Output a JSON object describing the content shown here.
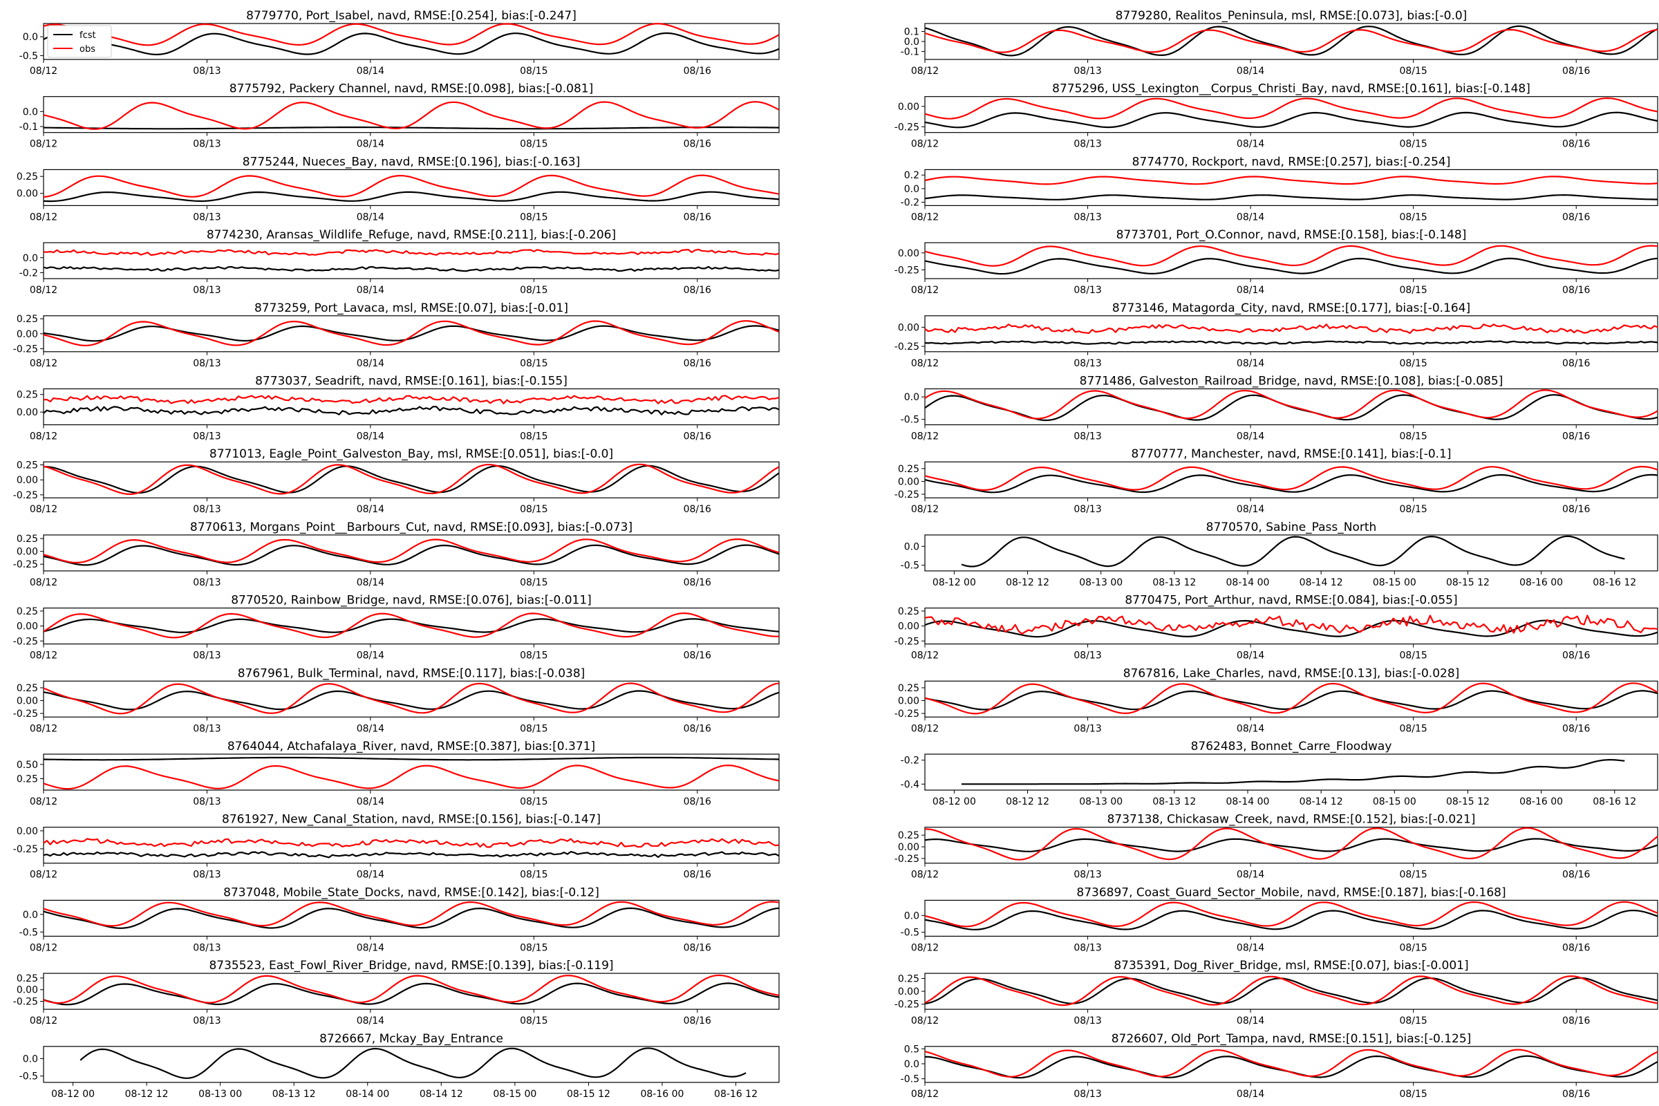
{
  "legend": {
    "items": [
      {
        "label": "fcst",
        "color": "#000000"
      },
      {
        "label": "obs",
        "color": "#ff0000"
      }
    ]
  },
  "colors": {
    "fcst": "#000000",
    "obs": "#ff0000"
  },
  "chart_data": [
    {
      "type": "line",
      "title": "8779770, Port_Isabel, navd, RMSE:[0.254], bias:[-0.247]",
      "xlabel": "",
      "ylabel": "",
      "x_ticks": [
        "08/12",
        "08/13",
        "08/14",
        "08/15",
        "08/16"
      ],
      "y_ticks": [
        "-0.5",
        "0.0"
      ],
      "ylim": [
        -0.6,
        0.35
      ],
      "series": [
        {
          "name": "fcst",
          "shape": "tide",
          "y0": -0.2,
          "amp": 0.25
        },
        {
          "name": "obs",
          "shape": "tide",
          "y0": 0.05,
          "amp": 0.25
        }
      ]
    },
    {
      "type": "line",
      "title": "8779280, Realitos_Peninsula, msl, RMSE:[0.073], bias:[-0.0]",
      "xlabel": "",
      "ylabel": "",
      "x_ticks": [
        "08/12",
        "08/13",
        "08/14",
        "08/15",
        "08/16"
      ],
      "y_ticks": [
        "-0.1",
        "0.0",
        "0.1"
      ],
      "ylim": [
        -0.18,
        0.18
      ],
      "series": [
        {
          "name": "fcst",
          "shape": "tide",
          "y0": 0.0,
          "amp": 0.13
        },
        {
          "name": "obs",
          "shape": "tide",
          "y0": 0.0,
          "amp": 0.1
        }
      ]
    },
    {
      "type": "line",
      "title": "8775792, Packery Channel, navd, RMSE:[0.098], bias:[-0.081]",
      "xlabel": "",
      "ylabel": "",
      "x_ticks": [
        "08/12",
        "08/13",
        "08/14",
        "08/15",
        "08/16"
      ],
      "y_ticks": [
        "-0.1",
        "0.0"
      ],
      "ylim": [
        -0.14,
        0.1
      ],
      "series": [
        {
          "name": "fcst",
          "shape": "flat",
          "y0": -0.11,
          "amp": 0.005
        },
        {
          "name": "obs",
          "shape": "tide",
          "y0": -0.03,
          "amp": 0.08
        }
      ]
    },
    {
      "type": "line",
      "title": "8775296, USS_Lexington__Corpus_Christi_Bay, navd, RMSE:[0.161], bias:[-0.148]",
      "xlabel": "",
      "ylabel": "",
      "x_ticks": [
        "08/12",
        "08/13",
        "08/14",
        "08/15",
        "08/16"
      ],
      "y_ticks": [
        "-0.25",
        "0.00"
      ],
      "ylim": [
        -0.32,
        0.12
      ],
      "series": [
        {
          "name": "fcst",
          "shape": "tide",
          "y0": -0.17,
          "amp": 0.08
        },
        {
          "name": "obs",
          "shape": "tide",
          "y0": -0.03,
          "amp": 0.11
        }
      ]
    },
    {
      "type": "line",
      "title": "8775244, Nueces_Bay, navd, RMSE:[0.196], bias:[-0.163]",
      "xlabel": "",
      "ylabel": "",
      "x_ticks": [
        "08/12",
        "08/13",
        "08/14",
        "08/15",
        "08/16"
      ],
      "y_ticks": [
        "0.00",
        "0.25"
      ],
      "ylim": [
        -0.18,
        0.35
      ],
      "series": [
        {
          "name": "fcst",
          "shape": "tide",
          "y0": -0.05,
          "amp": 0.06
        },
        {
          "name": "obs",
          "shape": "tide",
          "y0": 0.1,
          "amp": 0.14
        }
      ]
    },
    {
      "type": "line",
      "title": "8774770, Rockport, navd, RMSE:[0.257], bias:[-0.254]",
      "xlabel": "",
      "ylabel": "",
      "x_ticks": [
        "08/12",
        "08/13",
        "08/14",
        "08/15",
        "08/16"
      ],
      "y_ticks": [
        "-0.2",
        "0.0",
        "0.2"
      ],
      "ylim": [
        -0.25,
        0.28
      ],
      "series": [
        {
          "name": "fcst",
          "shape": "tide",
          "y0": -0.13,
          "amp": 0.03
        },
        {
          "name": "obs",
          "shape": "tide",
          "y0": 0.12,
          "amp": 0.05
        }
      ]
    },
    {
      "type": "line",
      "title": "8774230, Aransas_Wildlife_Refuge, navd, RMSE:[0.211], bias:[-0.206]",
      "xlabel": "",
      "ylabel": "",
      "x_ticks": [
        "08/12",
        "08/13",
        "08/14",
        "08/15",
        "08/16"
      ],
      "y_ticks": [
        "-0.2",
        "0.0"
      ],
      "ylim": [
        -0.28,
        0.2
      ],
      "series": [
        {
          "name": "fcst",
          "shape": "noisy",
          "y0": -0.15,
          "amp": 0.03
        },
        {
          "name": "obs",
          "shape": "noisy",
          "y0": 0.07,
          "amp": 0.04
        }
      ]
    },
    {
      "type": "line",
      "title": "8773701, Port_O.Connor, navd, RMSE:[0.158], bias:[-0.148]",
      "xlabel": "",
      "ylabel": "",
      "x_ticks": [
        "08/12",
        "08/13",
        "08/14",
        "08/15",
        "08/16"
      ],
      "y_ticks": [
        "-0.25",
        "0.00"
      ],
      "ylim": [
        -0.38,
        0.15
      ],
      "series": [
        {
          "name": "fcst",
          "shape": "tide",
          "y0": -0.2,
          "amp": 0.1
        },
        {
          "name": "obs",
          "shape": "tide",
          "y0": -0.05,
          "amp": 0.13
        }
      ]
    },
    {
      "type": "line",
      "title": "8773259, Port_Lavaca, msl, RMSE:[0.07], bias:[-0.01]",
      "xlabel": "",
      "ylabel": "",
      "x_ticks": [
        "08/12",
        "08/13",
        "08/14",
        "08/15",
        "08/16"
      ],
      "y_ticks": [
        "-0.25",
        "0.00",
        "0.25"
      ],
      "ylim": [
        -0.3,
        0.3
      ],
      "series": [
        {
          "name": "fcst",
          "shape": "tide",
          "y0": 0.0,
          "amp": 0.11
        },
        {
          "name": "obs",
          "shape": "tide",
          "y0": 0.0,
          "amp": 0.18
        }
      ]
    },
    {
      "type": "line",
      "title": "8773146, Matagorda_City, navd, RMSE:[0.177], bias:[-0.164]",
      "xlabel": "",
      "ylabel": "",
      "x_ticks": [
        "08/12",
        "08/13",
        "08/14",
        "08/15",
        "08/16"
      ],
      "y_ticks": [
        "-0.25",
        "0.00"
      ],
      "ylim": [
        -0.32,
        0.15
      ],
      "series": [
        {
          "name": "fcst",
          "shape": "noisy",
          "y0": -0.2,
          "amp": 0.02
        },
        {
          "name": "obs",
          "shape": "noisy",
          "y0": -0.02,
          "amp": 0.06
        }
      ]
    },
    {
      "type": "line",
      "title": "8773037, Seadrift, navd, RMSE:[0.161], bias:[-0.155]",
      "xlabel": "",
      "ylabel": "",
      "x_ticks": [
        "08/12",
        "08/13",
        "08/14",
        "08/15",
        "08/16"
      ],
      "y_ticks": [
        "0.00",
        "0.25"
      ],
      "ylim": [
        -0.18,
        0.33
      ],
      "series": [
        {
          "name": "fcst",
          "shape": "noisy",
          "y0": 0.02,
          "amp": 0.06
        },
        {
          "name": "obs",
          "shape": "noisy",
          "y0": 0.18,
          "amp": 0.06
        }
      ]
    },
    {
      "type": "line",
      "title": "8771486, Galveston_Railroad_Bridge, navd, RMSE:[0.108], bias:[-0.085]",
      "xlabel": "",
      "ylabel": "",
      "x_ticks": [
        "08/12",
        "08/13",
        "08/14",
        "08/15",
        "08/16"
      ],
      "y_ticks": [
        "-0.5",
        "0.0"
      ],
      "ylim": [
        -0.62,
        0.18
      ],
      "series": [
        {
          "name": "fcst",
          "shape": "tide",
          "y0": -0.25,
          "amp": 0.25
        },
        {
          "name": "obs",
          "shape": "tide",
          "y0": -0.18,
          "amp": 0.28
        }
      ]
    },
    {
      "type": "line",
      "title": "8771013, Eagle_Point_Galveston_Bay, msl, RMSE:[0.051], bias:[-0.0]",
      "xlabel": "",
      "ylabel": "",
      "x_ticks": [
        "08/12",
        "08/13",
        "08/14",
        "08/15",
        "08/16"
      ],
      "y_ticks": [
        "-0.25",
        "0.00",
        "0.25"
      ],
      "ylim": [
        -0.3,
        0.3
      ],
      "series": [
        {
          "name": "fcst",
          "shape": "tide",
          "y0": 0.0,
          "amp": 0.2
        },
        {
          "name": "obs",
          "shape": "tide",
          "y0": 0.0,
          "amp": 0.22
        }
      ]
    },
    {
      "type": "line",
      "title": "8770777, Manchester, navd, RMSE:[0.141], bias:[-0.1]",
      "xlabel": "",
      "ylabel": "",
      "x_ticks": [
        "08/12",
        "08/13",
        "08/14",
        "08/15",
        "08/16"
      ],
      "y_ticks": [
        "-0.25",
        "0.00",
        "0.25"
      ],
      "ylim": [
        -0.32,
        0.38
      ],
      "series": [
        {
          "name": "fcst",
          "shape": "tide",
          "y0": -0.05,
          "amp": 0.15
        },
        {
          "name": "obs",
          "shape": "tide",
          "y0": 0.05,
          "amp": 0.2
        }
      ]
    },
    {
      "type": "line",
      "title": "8770613, Morgans_Point__Barbours_Cut, navd, RMSE:[0.093], bias:[-0.073]",
      "xlabel": "",
      "ylabel": "",
      "x_ticks": [
        "08/12",
        "08/13",
        "08/14",
        "08/15",
        "08/16"
      ],
      "y_ticks": [
        "-0.25",
        "0.00",
        "0.25"
      ],
      "ylim": [
        -0.38,
        0.32
      ],
      "series": [
        {
          "name": "fcst",
          "shape": "tide",
          "y0": -0.08,
          "amp": 0.17
        },
        {
          "name": "obs",
          "shape": "tide",
          "y0": 0.0,
          "amp": 0.2
        }
      ]
    },
    {
      "type": "line",
      "title": "8770570, Sabine_Pass_North",
      "xlabel": "",
      "ylabel": "",
      "x_ticks": [
        "08-12 00",
        "08-12 12",
        "08-13 00",
        "08-13 12",
        "08-14 00",
        "08-14 12",
        "08-15 00",
        "08-15 12",
        "08-16 00",
        "08-16 12"
      ],
      "y_ticks": [
        "-0.5",
        "0.0"
      ],
      "ylim": [
        -0.65,
        0.3
      ],
      "series": [
        {
          "name": "fcst",
          "shape": "tide",
          "y0": -0.15,
          "amp": 0.35
        }
      ]
    },
    {
      "type": "line",
      "title": "8770520, Rainbow_Bridge, navd, RMSE:[0.076], bias:[-0.011]",
      "xlabel": "",
      "ylabel": "",
      "x_ticks": [
        "08/12",
        "08/13",
        "08/14",
        "08/15",
        "08/16"
      ],
      "y_ticks": [
        "-0.25",
        "0.00",
        "0.25"
      ],
      "ylim": [
        -0.3,
        0.3
      ],
      "series": [
        {
          "name": "fcst",
          "shape": "tide",
          "y0": 0.0,
          "amp": 0.1
        },
        {
          "name": "obs",
          "shape": "tide",
          "y0": 0.0,
          "amp": 0.18
        }
      ]
    },
    {
      "type": "line",
      "title": "8770475, Port_Arthur, navd, RMSE:[0.084], bias:[-0.055]",
      "xlabel": "",
      "ylabel": "",
      "x_ticks": [
        "08/12",
        "08/13",
        "08/14",
        "08/15",
        "08/16"
      ],
      "y_ticks": [
        "-0.25",
        "0.00",
        "0.25"
      ],
      "ylim": [
        -0.3,
        0.3
      ],
      "series": [
        {
          "name": "fcst",
          "shape": "tide",
          "y0": -0.05,
          "amp": 0.12
        },
        {
          "name": "obs",
          "shape": "noisy",
          "y0": 0.02,
          "amp": 0.16
        }
      ]
    },
    {
      "type": "line",
      "title": "8767961, Bulk_Terminal, navd, RMSE:[0.117], bias:[-0.038]",
      "xlabel": "",
      "ylabel": "",
      "x_ticks": [
        "08/12",
        "08/13",
        "08/14",
        "08/15",
        "08/16"
      ],
      "y_ticks": [
        "-0.25",
        "0.00",
        "0.25"
      ],
      "ylim": [
        -0.32,
        0.38
      ],
      "series": [
        {
          "name": "fcst",
          "shape": "tide",
          "y0": 0.0,
          "amp": 0.16
        },
        {
          "name": "obs",
          "shape": "tide",
          "y0": 0.03,
          "amp": 0.26
        }
      ]
    },
    {
      "type": "line",
      "title": "8767816, Lake_Charles, navd, RMSE:[0.13], bias:[-0.028]",
      "xlabel": "",
      "ylabel": "",
      "x_ticks": [
        "08/12",
        "08/13",
        "08/14",
        "08/15",
        "08/16"
      ],
      "y_ticks": [
        "-0.25",
        "0.00",
        "0.25"
      ],
      "ylim": [
        -0.32,
        0.38
      ],
      "series": [
        {
          "name": "fcst",
          "shape": "tide",
          "y0": 0.0,
          "amp": 0.16
        },
        {
          "name": "obs",
          "shape": "tide",
          "y0": 0.03,
          "amp": 0.26
        }
      ]
    },
    {
      "type": "line",
      "title": "8764044, Atchafalaya_River, navd, RMSE:[0.387], bias:[0.371]",
      "xlabel": "",
      "ylabel": "",
      "x_ticks": [
        "08/12",
        "08/13",
        "08/14",
        "08/15",
        "08/16"
      ],
      "y_ticks": [
        "0.25",
        "0.50"
      ],
      "ylim": [
        0.05,
        0.68
      ],
      "series": [
        {
          "name": "fcst",
          "shape": "flat",
          "y0": 0.6,
          "amp": 0.02
        },
        {
          "name": "obs",
          "shape": "tide",
          "y0": 0.27,
          "amp": 0.18
        }
      ]
    },
    {
      "type": "line",
      "title": "8762483, Bonnet_Carre_Floodway",
      "xlabel": "",
      "ylabel": "",
      "x_ticks": [
        "08-12 00",
        "08-12 12",
        "08-13 00",
        "08-13 12",
        "08-14 00",
        "08-14 12",
        "08-15 00",
        "08-15 12",
        "08-16 00",
        "08-16 12"
      ],
      "y_ticks": [
        "-0.4",
        "-0.2"
      ],
      "ylim": [
        -0.45,
        -0.15
      ],
      "series": [
        {
          "name": "fcst",
          "shape": "rise",
          "y0": -0.4,
          "amp": 0.2
        }
      ]
    },
    {
      "type": "line",
      "title": "8761927, New_Canal_Station, navd, RMSE:[0.156], bias:[-0.147]",
      "xlabel": "",
      "ylabel": "",
      "x_ticks": [
        "08/12",
        "08/13",
        "08/14",
        "08/15",
        "08/16"
      ],
      "y_ticks": [
        "-0.25",
        "0.00"
      ],
      "ylim": [
        -0.45,
        0.05
      ],
      "series": [
        {
          "name": "fcst",
          "shape": "noisy",
          "y0": -0.33,
          "amp": 0.04
        },
        {
          "name": "obs",
          "shape": "noisy",
          "y0": -0.17,
          "amp": 0.06
        }
      ]
    },
    {
      "type": "line",
      "title": "8737138, Chickasaw_Creek, navd, RMSE:[0.152], bias:[-0.021]",
      "xlabel": "",
      "ylabel": "",
      "x_ticks": [
        "08/12",
        "08/13",
        "08/14",
        "08/15",
        "08/16"
      ],
      "y_ticks": [
        "-0.25",
        "0.00",
        "0.25"
      ],
      "ylim": [
        -0.35,
        0.42
      ],
      "series": [
        {
          "name": "fcst",
          "shape": "tide",
          "y0": 0.03,
          "amp": 0.12
        },
        {
          "name": "obs",
          "shape": "tide",
          "y0": 0.05,
          "amp": 0.3
        }
      ]
    },
    {
      "type": "line",
      "title": "8737048, Mobile_State_Docks, navd, RMSE:[0.142], bias:[-0.12]",
      "xlabel": "",
      "ylabel": "",
      "x_ticks": [
        "08/12",
        "08/13",
        "08/14",
        "08/15",
        "08/16"
      ],
      "y_ticks": [
        "-0.5",
        "0.0"
      ],
      "ylim": [
        -0.62,
        0.4
      ],
      "series": [
        {
          "name": "fcst",
          "shape": "tide",
          "y0": -0.12,
          "amp": 0.25
        },
        {
          "name": "obs",
          "shape": "tide",
          "y0": 0.0,
          "amp": 0.3
        }
      ]
    },
    {
      "type": "line",
      "title": "8736897, Coast_Guard_Sector_Mobile, navd, RMSE:[0.187], bias:[-0.168]",
      "xlabel": "",
      "ylabel": "",
      "x_ticks": [
        "08/12",
        "08/13",
        "08/14",
        "08/15",
        "08/16"
      ],
      "y_ticks": [
        "-0.5",
        "0.0"
      ],
      "ylim": [
        -0.62,
        0.45
      ],
      "series": [
        {
          "name": "fcst",
          "shape": "tide",
          "y0": -0.15,
          "amp": 0.25
        },
        {
          "name": "obs",
          "shape": "tide",
          "y0": 0.02,
          "amp": 0.32
        }
      ]
    },
    {
      "type": "line",
      "title": "8735523, East_Fowl_River_Bridge, navd, RMSE:[0.139], bias:[-0.119]",
      "xlabel": "",
      "ylabel": "",
      "x_ticks": [
        "08/12",
        "08/13",
        "08/14",
        "08/15",
        "08/16"
      ],
      "y_ticks": [
        "-0.25",
        "0.00",
        "0.25"
      ],
      "ylim": [
        -0.42,
        0.35
      ],
      "series": [
        {
          "name": "fcst",
          "shape": "tide",
          "y0": -0.1,
          "amp": 0.2
        },
        {
          "name": "obs",
          "shape": "tide",
          "y0": 0.0,
          "amp": 0.26
        }
      ]
    },
    {
      "type": "line",
      "title": "8735391, Dog_River_Bridge, msl, RMSE:[0.07], bias:[-0.001]",
      "xlabel": "",
      "ylabel": "",
      "x_ticks": [
        "08/12",
        "08/13",
        "08/14",
        "08/15",
        "08/16"
      ],
      "y_ticks": [
        "-0.25",
        "0.00",
        "0.25"
      ],
      "ylim": [
        -0.35,
        0.35
      ],
      "series": [
        {
          "name": "fcst",
          "shape": "tide",
          "y0": 0.0,
          "amp": 0.22
        },
        {
          "name": "obs",
          "shape": "tide",
          "y0": 0.0,
          "amp": 0.25
        }
      ]
    },
    {
      "type": "line",
      "title": "8726667, Mckay_Bay_Entrance",
      "xlabel": "",
      "ylabel": "",
      "x_ticks": [
        "08-12 00",
        "08-12 12",
        "08-13 00",
        "08-13 12",
        "08-14 00",
        "08-14 12",
        "08-15 00",
        "08-15 12",
        "08-16 00",
        "08-16 12"
      ],
      "y_ticks": [
        "-0.5",
        "0.0"
      ],
      "ylim": [
        -0.68,
        0.35
      ],
      "series": [
        {
          "name": "fcst",
          "shape": "tide",
          "y0": -0.15,
          "amp": 0.38
        }
      ]
    },
    {
      "type": "line",
      "title": "8726607, Old_Port_Tampa, navd, RMSE:[0.151], bias:[-0.125]",
      "xlabel": "",
      "ylabel": "",
      "x_ticks": [
        "08/12",
        "08/13",
        "08/14",
        "08/15",
        "08/16"
      ],
      "y_ticks": [
        "-0.5",
        "0.0",
        "0.5"
      ],
      "ylim": [
        -0.62,
        0.58
      ],
      "series": [
        {
          "name": "fcst",
          "shape": "tide",
          "y0": -0.12,
          "amp": 0.32
        },
        {
          "name": "obs",
          "shape": "tide",
          "y0": 0.0,
          "amp": 0.4
        }
      ]
    }
  ]
}
